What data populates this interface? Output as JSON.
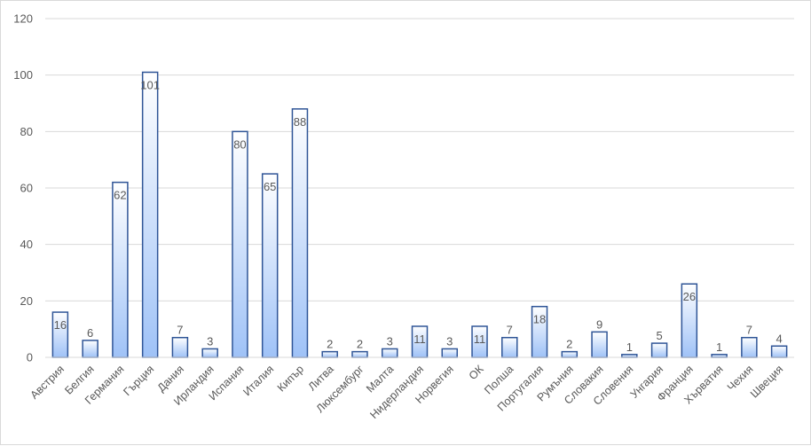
{
  "chart_data": {
    "type": "bar",
    "categories": [
      "Австрия",
      "Белгия",
      "Германия",
      "Гърция",
      "Дания",
      "Ирландия",
      "Испания",
      "Италия",
      "Кипър",
      "Литва",
      "Люксембург",
      "Малта",
      "Нидерландия",
      "Норвегия",
      "ОК",
      "Полша",
      "Португалия",
      "Румъния",
      "Словакия",
      "Словения",
      "Унгария",
      "Франция",
      "Хърватия",
      "Чехия",
      "Швеция"
    ],
    "values": [
      16,
      6,
      62,
      101,
      7,
      3,
      80,
      65,
      88,
      2,
      2,
      3,
      11,
      3,
      11,
      7,
      18,
      2,
      9,
      1,
      5,
      26,
      1,
      7,
      4
    ],
    "ylim": [
      0,
      120
    ],
    "yticks": [
      0,
      20,
      40,
      60,
      80,
      100,
      120
    ],
    "grid": true,
    "data_labels": true,
    "legend": "none",
    "colors": {
      "bar_top": "#ffffff",
      "bar_bottom": "#9fc2f7",
      "bar_stroke": "#2f5597",
      "grid": "#d9d9d9",
      "text": "#595959"
    }
  }
}
